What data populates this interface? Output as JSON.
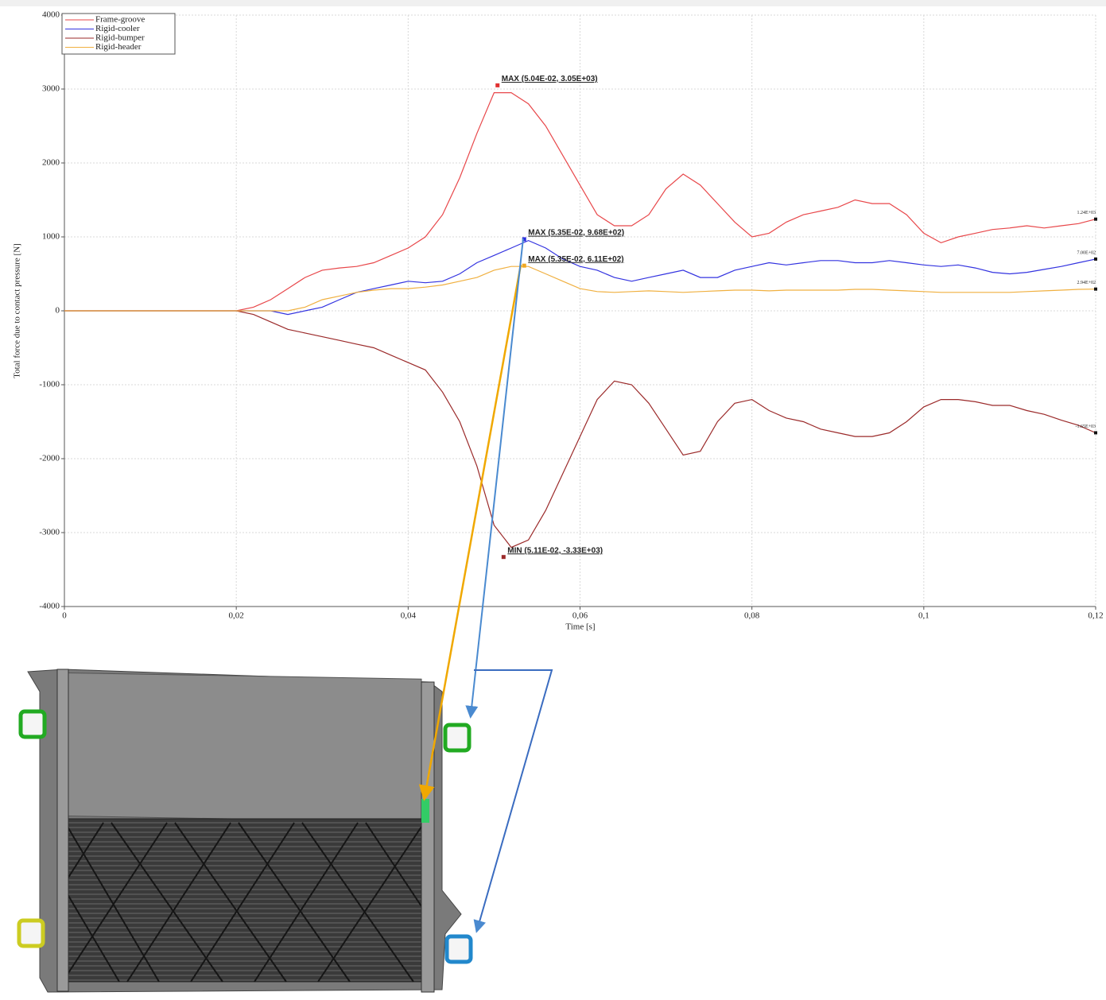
{
  "chart_data": {
    "type": "line",
    "x_label": "Time [s]",
    "y_label": "Total force due to contact pressure [N]",
    "xlim": [
      0,
      0.12
    ],
    "ylim": [
      -4000,
      4000
    ],
    "xticks": [
      0,
      {
        "value": 0.02,
        "label": "0,02"
      },
      {
        "value": 0.04,
        "label": "0,04"
      },
      {
        "value": 0.06,
        "label": "0,06"
      },
      {
        "value": 0.08,
        "label": "0,08"
      },
      {
        "value": 0.1,
        "label": "0,1"
      },
      {
        "value": 0.12,
        "label": "0,12"
      }
    ],
    "yticks": [
      -4000,
      -3000,
      -2000,
      -1000,
      0,
      1000,
      2000,
      3000,
      4000
    ],
    "grid": true,
    "legend": "upper left",
    "x": [
      0,
      0.002,
      0.004,
      0.006,
      0.008,
      0.01,
      0.012,
      0.014,
      0.016,
      0.018,
      0.02,
      0.022,
      0.024,
      0.026,
      0.028,
      0.03,
      0.032,
      0.034,
      0.036,
      0.038,
      0.04,
      0.042,
      0.044,
      0.046,
      0.048,
      0.05,
      0.052,
      0.054,
      0.056,
      0.058,
      0.06,
      0.062,
      0.064,
      0.066,
      0.068,
      0.07,
      0.072,
      0.074,
      0.076,
      0.078,
      0.08,
      0.082,
      0.084,
      0.086,
      0.088,
      0.09,
      0.092,
      0.094,
      0.096,
      0.098,
      0.1,
      0.102,
      0.104,
      0.106,
      0.108,
      0.11,
      0.112,
      0.114,
      0.116,
      0.118,
      0.12
    ],
    "series": [
      {
        "name": "Frame-groove",
        "color": "#e8474a",
        "values": [
          0,
          0,
          0,
          0,
          0,
          0,
          0,
          0,
          0,
          0,
          0,
          50,
          150,
          300,
          450,
          550,
          580,
          600,
          650,
          750,
          850,
          1000,
          1300,
          1800,
          2400,
          2950,
          2950,
          2800,
          2500,
          2100,
          1700,
          1300,
          1150,
          1150,
          1300,
          1650,
          1850,
          1700,
          1450,
          1200,
          1000,
          1050,
          1200,
          1300,
          1350,
          1400,
          1500,
          1450,
          1450,
          1300,
          1050,
          920,
          1000,
          1050,
          1100,
          1120,
          1150,
          1120,
          1150,
          1180,
          1240
        ]
      },
      {
        "name": "Rigid-cooler",
        "color": "#3333e0",
        "values": [
          0,
          0,
          0,
          0,
          0,
          0,
          0,
          0,
          0,
          0,
          0,
          0,
          0,
          -50,
          0,
          50,
          150,
          250,
          300,
          350,
          400,
          380,
          400,
          500,
          650,
          750,
          850,
          950,
          850,
          700,
          600,
          550,
          450,
          400,
          450,
          500,
          550,
          450,
          450,
          550,
          600,
          650,
          620,
          650,
          680,
          680,
          650,
          650,
          680,
          650,
          620,
          600,
          620,
          580,
          520,
          500,
          520,
          560,
          600,
          650,
          700
        ]
      },
      {
        "name": "Rigid-bumper",
        "color": "#9b2a2a",
        "values": [
          0,
          0,
          0,
          0,
          0,
          0,
          0,
          0,
          0,
          0,
          0,
          -50,
          -150,
          -250,
          -300,
          -350,
          -400,
          -450,
          -500,
          -600,
          -700,
          -800,
          -1100,
          -1500,
          -2100,
          -2900,
          -3200,
          -3100,
          -2700,
          -2200,
          -1700,
          -1200,
          -950,
          -1000,
          -1250,
          -1600,
          -1950,
          -1900,
          -1500,
          -1250,
          -1200,
          -1350,
          -1450,
          -1500,
          -1600,
          -1650,
          -1700,
          -1700,
          -1650,
          -1500,
          -1300,
          -1200,
          -1200,
          -1230,
          -1280,
          -1280,
          -1350,
          -1400,
          -1480,
          -1550,
          -1650
        ]
      },
      {
        "name": "Rigid-header",
        "color": "#f0b040",
        "values": [
          0,
          0,
          0,
          0,
          0,
          0,
          0,
          0,
          0,
          0,
          0,
          0,
          0,
          0,
          50,
          150,
          200,
          250,
          280,
          300,
          300,
          320,
          350,
          400,
          450,
          550,
          600,
          600,
          500,
          400,
          300,
          260,
          250,
          260,
          270,
          260,
          250,
          260,
          270,
          280,
          280,
          270,
          280,
          280,
          280,
          280,
          290,
          290,
          280,
          270,
          260,
          250,
          250,
          250,
          250,
          250,
          260,
          270,
          280,
          290,
          294
        ]
      }
    ],
    "annotations": [
      {
        "text": "MAX (5.04E-02, 3.05E+03)",
        "x": 0.0504,
        "y": 3050,
        "color": "#e03030"
      },
      {
        "text": "MAX (5.35E-02, 9.68E+02)",
        "x": 0.0535,
        "y": 968,
        "color": "#2a2ae0"
      },
      {
        "text": "MAX (5.35E-02, 6.11E+02)",
        "x": 0.0535,
        "y": 611,
        "color": "#f0a820"
      },
      {
        "text": "MIN (5.11E-02, -3.33E+03)",
        "x": 0.0511,
        "y": -3330,
        "color": "#9b2a2a"
      }
    ],
    "end_labels": [
      {
        "text": "1.24E+03",
        "x": 0.12,
        "y": 1240
      },
      {
        "text": "7.00E+02",
        "x": 0.12,
        "y": 700
      },
      {
        "text": "2.94E+02",
        "x": 0.12,
        "y": 294
      },
      {
        "text": "-1.65E+03",
        "x": 0.12,
        "y": -1650
      }
    ]
  }
}
